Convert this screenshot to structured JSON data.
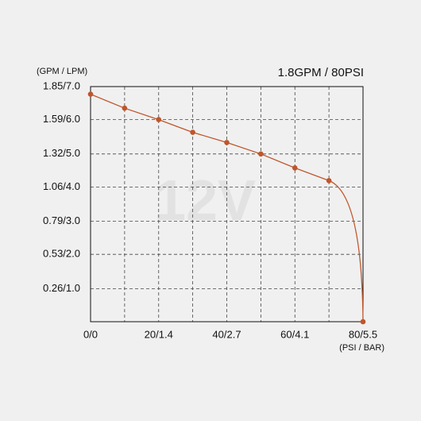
{
  "chart_data": {
    "type": "line",
    "title": "1.8GPM / 80PSI",
    "watermark": "12V",
    "y_label": "(GPM / LPM)",
    "x_label": "(PSI / BAR)",
    "x": [
      0,
      10,
      20,
      30,
      40,
      50,
      60,
      70,
      80
    ],
    "series": [
      {
        "name": "12V",
        "color": "#c0552a",
        "values": [
          1.79,
          1.68,
          1.59,
          1.49,
          1.41,
          1.32,
          1.21,
          1.11,
          0
        ]
      }
    ],
    "xlim": [
      0,
      80
    ],
    "ylim": [
      0,
      1.85
    ],
    "xticks": [
      {
        "value": 0,
        "label": "0/0"
      },
      {
        "value": 20,
        "label": "20/1.4"
      },
      {
        "value": 40,
        "label": "40/2.7"
      },
      {
        "value": 60,
        "label": "60/4.1"
      },
      {
        "value": 80,
        "label": "80/5.5"
      }
    ],
    "xminor_ticks": [
      10,
      30,
      50,
      70
    ],
    "yticks": [
      {
        "value": 1.85,
        "label": "1.85/7.0"
      },
      {
        "value": 1.59,
        "label": "1.59/6.0"
      },
      {
        "value": 1.32,
        "label": "1.32/5.0"
      },
      {
        "value": 1.06,
        "label": "1.06/4.0"
      },
      {
        "value": 0.79,
        "label": "0.79/3.0"
      },
      {
        "value": 0.53,
        "label": "0.53/2.0"
      },
      {
        "value": 0.26,
        "label": "0.26/1.0"
      }
    ],
    "grid": true
  }
}
